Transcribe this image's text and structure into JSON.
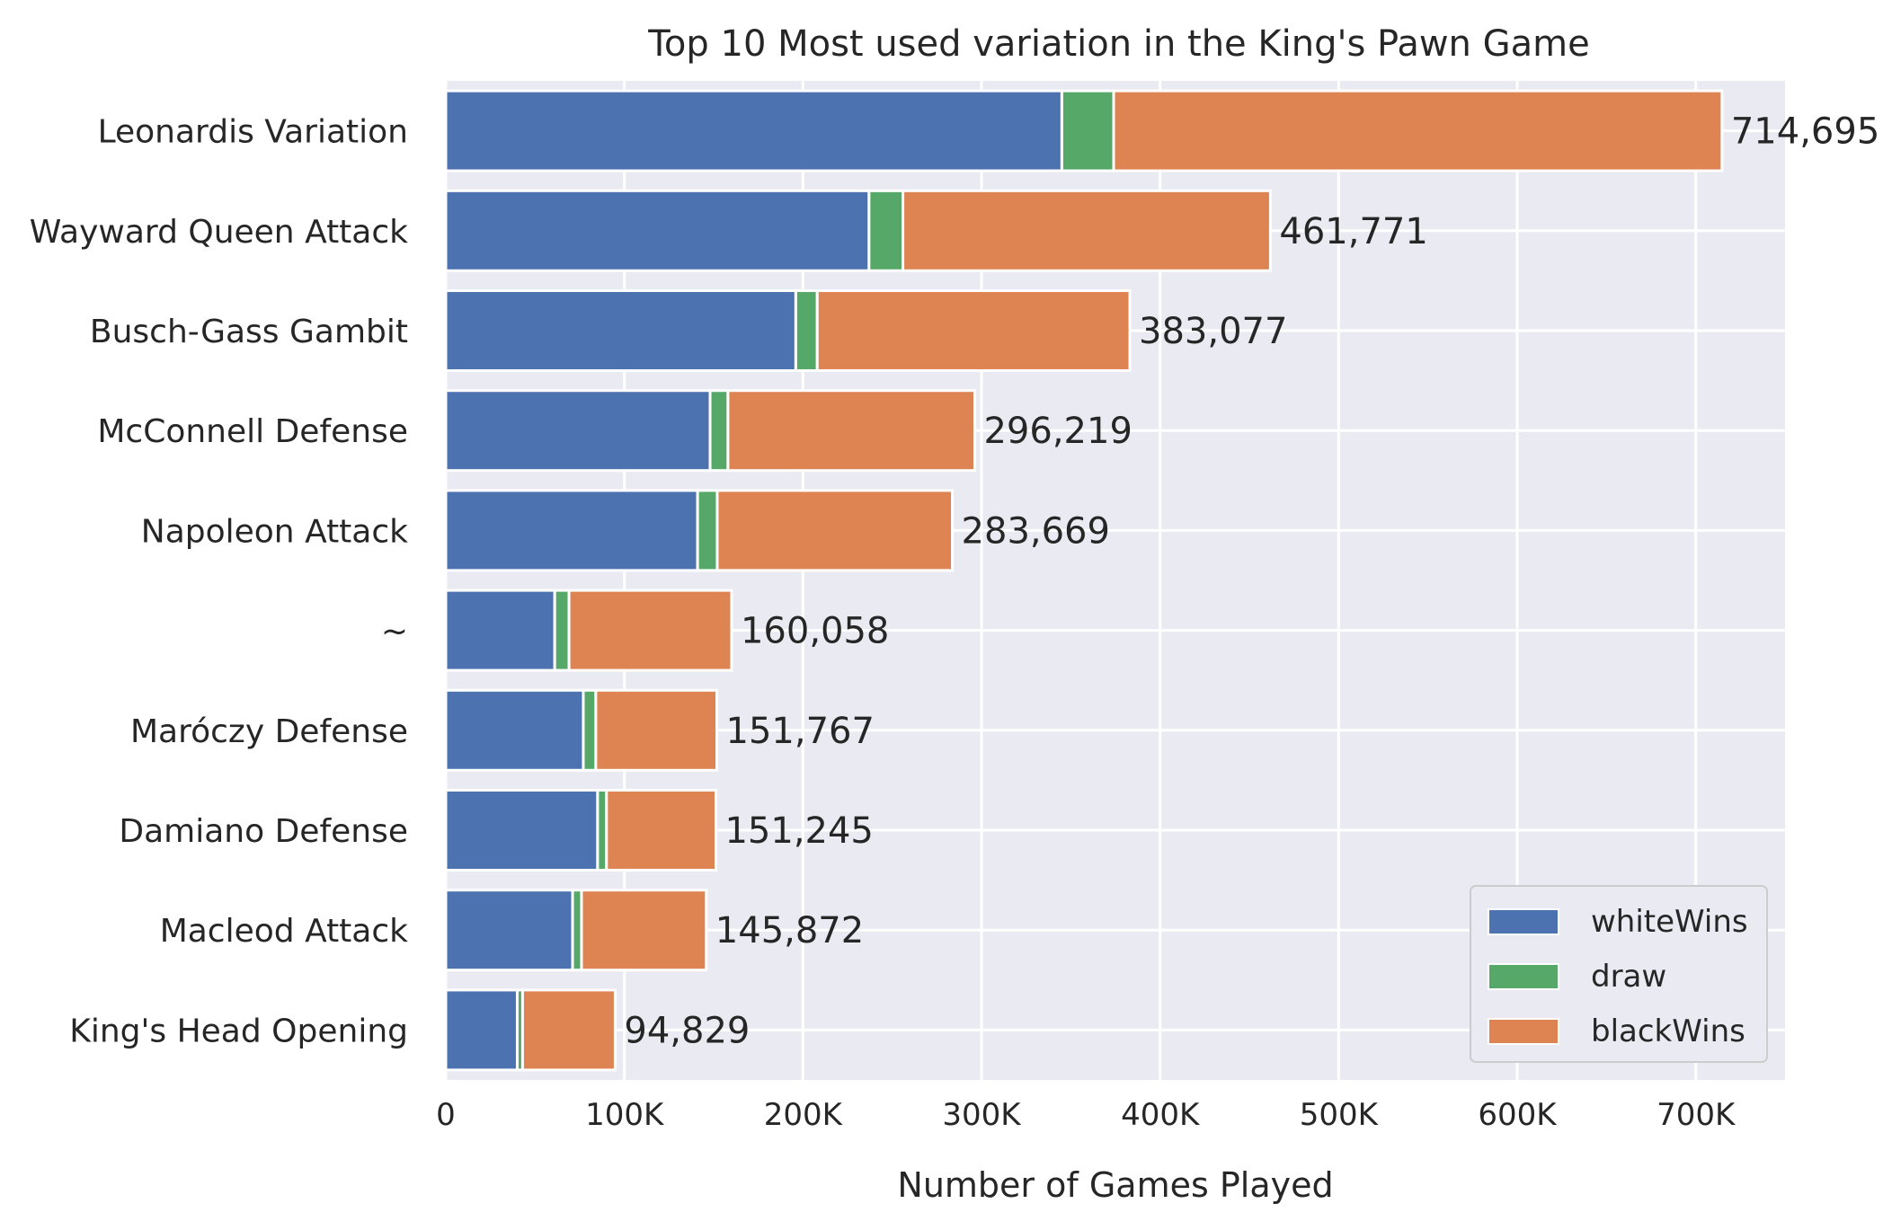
{
  "chart_data": {
    "type": "bar",
    "orientation": "horizontal",
    "stacked": true,
    "title": "Top 10 Most used variation in the King's Pawn Game",
    "xlabel": "Number of Games Played",
    "ylabel": "",
    "xlim": [
      0,
      750000
    ],
    "x_ticks": [
      0,
      100000,
      200000,
      300000,
      400000,
      500000,
      600000,
      700000
    ],
    "x_tick_labels": [
      "0",
      "100K",
      "200K",
      "300K",
      "400K",
      "500K",
      "600K",
      "700K"
    ],
    "grid": true,
    "legend_position": "bottom-right",
    "categories": [
      "Leonardis Variation",
      "Wayward Queen Attack",
      "Busch-Gass Gambit",
      "McConnell Defense",
      "Napoleon Attack",
      "~",
      "Maróczy Defense",
      "Damiano Defense",
      "Macleod Attack",
      "King's Head Opening"
    ],
    "series": [
      {
        "name": "whiteWins",
        "color": "#4c72b0",
        "values": [
          345000,
          237000,
          196000,
          148000,
          141000,
          61000,
          77000,
          85000,
          71000,
          40000
        ]
      },
      {
        "name": "draw",
        "color": "#55a868",
        "values": [
          29000,
          19000,
          12000,
          10000,
          11000,
          8000,
          7000,
          5000,
          5000,
          3000
        ]
      },
      {
        "name": "blackWins",
        "color": "#dd8452",
        "values": [
          340695,
          205771,
          175077,
          138219,
          131669,
          91058,
          67767,
          61245,
          69872,
          51829
        ]
      }
    ],
    "totals": [
      714695,
      461771,
      383077,
      296219,
      283669,
      160058,
      151767,
      151245,
      145872,
      94829
    ],
    "total_labels": [
      "714,695",
      "461,771",
      "383,077",
      "296,219",
      "283,669",
      "160,058",
      "151,767",
      "151,245",
      "145,872",
      "94,829"
    ]
  }
}
